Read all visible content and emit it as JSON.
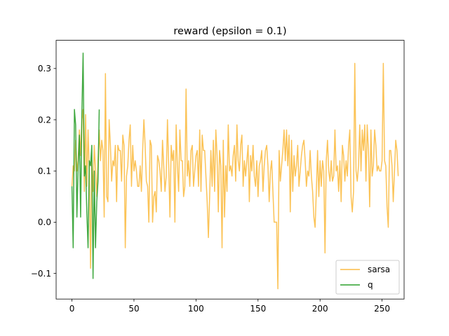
{
  "chart_data": {
    "type": "line",
    "title": "reward (epsilon = 0.1)",
    "xlabel": "",
    "ylabel": "",
    "xlim": [
      -12.75,
      267.75
    ],
    "ylim": [
      -0.15,
      0.355
    ],
    "xticks": [
      0,
      50,
      100,
      150,
      200,
      250
    ],
    "yticks": [
      -0.1,
      0.0,
      0.1,
      0.2,
      0.3
    ],
    "ytick_labels": [
      "−0.1",
      "0.0",
      "0.1",
      "0.2",
      "0.3"
    ],
    "grid": false,
    "legend_position": "lower-right",
    "series": [
      {
        "name": "sarsa",
        "color": "#fbbc45",
        "x_start": 0,
        "values": [
          0.07,
          0.11,
          0.1,
          0.16,
          0.1,
          0.12,
          0.18,
          0.13,
          0.2,
          0.22,
          0.06,
          0.21,
          0.07,
          0.18,
          0.1,
          -0.09,
          0.12,
          0.06,
          0.15,
          0.1,
          0.05,
          0.12,
          0.18,
          0.12,
          0.16,
          0.14,
          0.01,
          0.29,
          0.05,
          0.04,
          0.2,
          0.15,
          0.08,
          0.12,
          0.11,
          0.15,
          0.04,
          0.15,
          0.14,
          0.14,
          0.08,
          0.17,
          0.15,
          -0.05,
          0.09,
          0.11,
          0.16,
          0.19,
          0.07,
          0.15,
          0.1,
          0.12,
          0.1,
          0.07,
          0.07,
          0.11,
          0.06,
          0.14,
          0.2,
          0.15,
          0.08,
          0.07,
          0.0,
          0.16,
          0.15,
          0.0,
          0.05,
          0.06,
          0.02,
          0.13,
          0.12,
          0.1,
          0.06,
          0.16,
          0.11,
          0.06,
          0.09,
          0.2,
          0.11,
          0.01,
          0.15,
          0.12,
          0.14,
          0.0,
          0.19,
          0.11,
          0.06,
          0.18,
          0.12,
          0.12,
          0.05,
          0.07,
          0.26,
          0.09,
          0.12,
          0.07,
          0.14,
          0.15,
          0.07,
          0.1,
          0.13,
          0.14,
          0.07,
          0.18,
          0.06,
          0.17,
          0.14,
          0.14,
          0.09,
          0.04,
          -0.03,
          0.05,
          0.14,
          0.07,
          0.16,
          0.06,
          0.18,
          0.13,
          0.02,
          0.14,
          0.11,
          -0.05,
          0.16,
          0.01,
          0.11,
          0.06,
          0.19,
          0.1,
          0.11,
          0.09,
          0.13,
          0.15,
          0.08,
          0.19,
          0.12,
          0.1,
          0.15,
          0.17,
          0.07,
          0.12,
          0.09,
          0.12,
          0.15,
          0.04,
          0.13,
          0.1,
          0.15,
          0.09,
          0.07,
          0.12,
          0.05,
          0.11,
          0.12,
          0.14,
          0.06,
          0.11,
          0.14,
          0.15,
          0.11,
          0.04,
          0.1,
          0.12,
          0.06,
          0.0,
          0.0,
          0.0,
          -0.13,
          0.14,
          0.08,
          0.11,
          0.14,
          0.18,
          0.12,
          0.18,
          0.11,
          0.17,
          0.02,
          0.16,
          0.06,
          0.13,
          0.09,
          0.11,
          0.15,
          0.07,
          0.1,
          0.13,
          0.15,
          0.16,
          0.12,
          0.07,
          0.1,
          0.09,
          0.14,
          0.09,
          0.06,
          0.01,
          -0.01,
          0.06,
          0.14,
          0.05,
          0.12,
          0.07,
          0.12,
          0.1,
          -0.06,
          0.12,
          0.16,
          0.1,
          0.08,
          0.12,
          0.08,
          0.09,
          0.18,
          0.1,
          0.11,
          0.06,
          0.12,
          0.04,
          0.15,
          0.13,
          0.08,
          0.12,
          0.09,
          0.15,
          0.18,
          0.05,
          0.02,
          0.06,
          0.31,
          0.1,
          0.08,
          0.11,
          0.19,
          0.1,
          0.18,
          0.14,
          0.19,
          0.08,
          0.19,
          0.14,
          0.03,
          0.18,
          0.09,
          0.11,
          0.18,
          0.15,
          0.1,
          0.11,
          0.1,
          0.1,
          0.12,
          0.31,
          0.12,
          0.11,
          0.03,
          -0.01,
          0.14,
          0.14,
          0.11,
          0.04,
          0.1,
          0.16,
          0.14,
          0.09
        ]
      },
      {
        "name": "q",
        "color": "#2ca02c",
        "x_start": 0,
        "values": [
          0.07,
          -0.05,
          0.22,
          0.19,
          0.01,
          0.11,
          0.17,
          0.01,
          0.21,
          0.33,
          0.09,
          0.11,
          0.02,
          -0.05,
          0.12,
          0.11,
          0.15,
          -0.11,
          0.1,
          -0.05,
          0.04,
          0.08,
          0.22
        ]
      }
    ]
  }
}
